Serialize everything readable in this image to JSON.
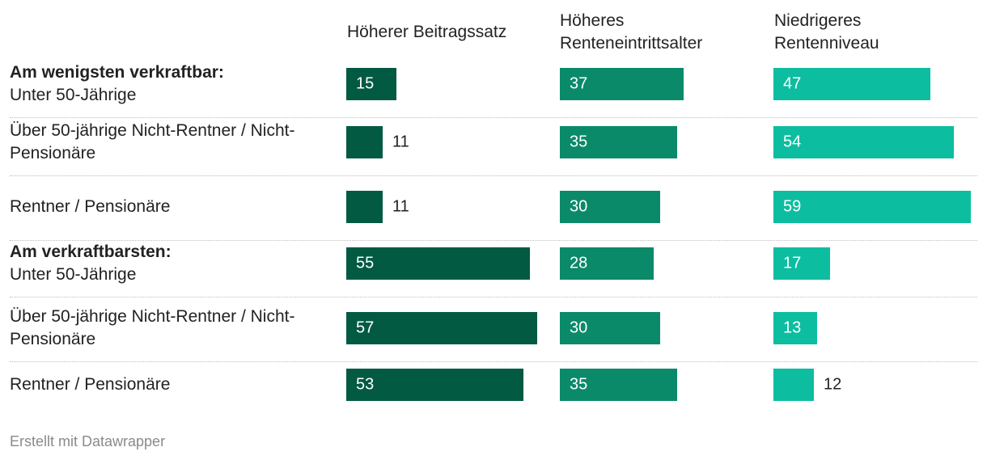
{
  "chart_data": {
    "type": "bar",
    "columns": [
      "Höherer Beitragssatz",
      "Höheres Renteneintrittsalter",
      "Niedrigeres Rentenniveau"
    ],
    "column_header_lines": [
      [
        "Höherer Beitragssatz"
      ],
      [
        "Höheres",
        "Renteneintrittsalter"
      ],
      [
        "Niedrigeres",
        "Rentenniveau"
      ]
    ],
    "colors": [
      "#035a43",
      "#0b8a6a",
      "#0dbda0"
    ],
    "xlim": [
      0,
      59
    ],
    "rows": [
      {
        "group": "Am wenigsten verkraftbar:",
        "label": "Unter 50-Jährige",
        "values": [
          15,
          37,
          47
        ]
      },
      {
        "group": "",
        "label": "Über 50-jährige Nicht-Rentner / Nicht-Pensionäre",
        "values": [
          11,
          35,
          54
        ]
      },
      {
        "group": "",
        "label": "Rentner / Pensionäre",
        "values": [
          11,
          30,
          59
        ]
      },
      {
        "group": "Am verkraftbarsten:",
        "label": "Unter 50-Jährige",
        "values": [
          55,
          28,
          17
        ]
      },
      {
        "group": "",
        "label": "Über 50-jährige Nicht-Rentner / Nicht-Pensionäre",
        "values": [
          57,
          30,
          13
        ]
      },
      {
        "group": "",
        "label": "Rentner / Pensionäre",
        "values": [
          53,
          35,
          12
        ]
      }
    ]
  },
  "footer": "Erstellt mit Datawrapper"
}
